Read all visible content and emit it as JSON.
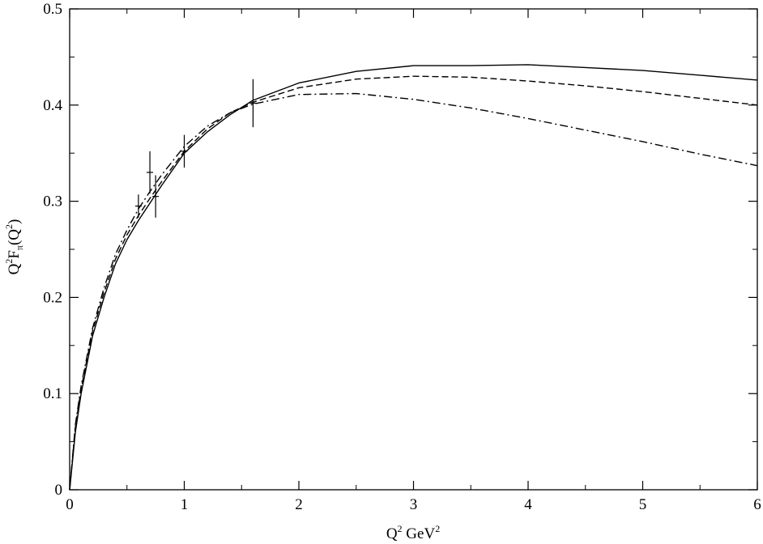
{
  "chart_data": {
    "type": "line",
    "title": "",
    "xlabel": {
      "base": "Q",
      "sup1": "2",
      "mid": " GeV",
      "sup2": "2"
    },
    "ylabel": {
      "p1": "Q",
      "sup1": "2",
      "p2": "F",
      "sub": "π",
      "p3": "(Q",
      "sup2": "2",
      "p4": ")"
    },
    "xlim": [
      0,
      6
    ],
    "ylim": [
      0,
      0.5
    ],
    "xticks": [
      0,
      1,
      2,
      3,
      4,
      5,
      6
    ],
    "xtick_labels": [
      "0",
      "1",
      "2",
      "3",
      "4",
      "5",
      "6"
    ],
    "yticks": [
      0,
      0.1,
      0.2,
      0.3,
      0.4,
      0.5
    ],
    "ytick_labels": [
      "0",
      "0.1",
      "0.2",
      "0.3",
      "0.4",
      "0.5"
    ],
    "grid": false,
    "legend": "none",
    "series": [
      {
        "style": "solid",
        "x": [
          0,
          0.05,
          0.1,
          0.2,
          0.3,
          0.4,
          0.5,
          0.6,
          0.7,
          0.8,
          1.0,
          1.2,
          1.4,
          1.6,
          2.0,
          2.5,
          3.0,
          3.5,
          4.0,
          4.5,
          5.0,
          5.5,
          6.0
        ],
        "y": [
          0,
          0.06,
          0.1,
          0.16,
          0.2,
          0.235,
          0.26,
          0.28,
          0.298,
          0.316,
          0.35,
          0.372,
          0.39,
          0.405,
          0.423,
          0.435,
          0.441,
          0.441,
          0.442,
          0.439,
          0.436,
          0.431,
          0.426
        ]
      },
      {
        "style": "dashed",
        "x": [
          0,
          0.05,
          0.1,
          0.2,
          0.3,
          0.4,
          0.5,
          0.6,
          0.7,
          0.8,
          1.0,
          1.2,
          1.4,
          1.6,
          2.0,
          2.5,
          3.0,
          3.5,
          4.0,
          4.5,
          5.0,
          5.5,
          6.0
        ],
        "y": [
          0,
          0.065,
          0.105,
          0.165,
          0.205,
          0.24,
          0.265,
          0.285,
          0.303,
          0.32,
          0.352,
          0.375,
          0.392,
          0.403,
          0.418,
          0.427,
          0.43,
          0.429,
          0.425,
          0.42,
          0.414,
          0.407,
          0.4
        ]
      },
      {
        "style": "dashdot",
        "x": [
          0,
          0.05,
          0.1,
          0.2,
          0.3,
          0.4,
          0.5,
          0.6,
          0.7,
          0.8,
          1.0,
          1.2,
          1.4,
          1.6,
          2.0,
          2.5,
          3.0,
          3.5,
          4.0,
          4.5,
          5.0,
          5.5,
          6.0
        ],
        "y": [
          0,
          0.068,
          0.108,
          0.168,
          0.21,
          0.245,
          0.27,
          0.292,
          0.31,
          0.327,
          0.357,
          0.378,
          0.392,
          0.401,
          0.411,
          0.412,
          0.406,
          0.397,
          0.386,
          0.374,
          0.362,
          0.349,
          0.337
        ]
      }
    ],
    "data_points": [
      {
        "x": 0.6,
        "y": 0.295,
        "err": 0.012
      },
      {
        "x": 0.7,
        "y": 0.33,
        "err": 0.022
      },
      {
        "x": 0.75,
        "y": 0.305,
        "err": 0.022
      },
      {
        "x": 1.0,
        "y": 0.352,
        "err": 0.017
      },
      {
        "x": 1.6,
        "y": 0.402,
        "err": 0.025
      }
    ]
  }
}
